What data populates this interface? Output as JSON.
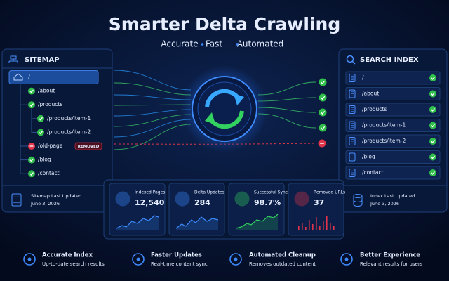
{
  "header": {
    "title": "Smarter Delta Crawling",
    "tagline": [
      "Accurate",
      "Fast",
      "Automated"
    ]
  },
  "sitemap": {
    "title": "SITEMAP",
    "items": [
      {
        "path": "/"
      },
      {
        "path": "/about"
      },
      {
        "path": "/products"
      },
      {
        "path": "/products/item-1"
      },
      {
        "path": "/products/item-2"
      },
      {
        "path": "/old-page",
        "badge": "REMOVED"
      },
      {
        "path": "/blog"
      },
      {
        "path": "/contact"
      }
    ],
    "footer": {
      "label": "Sitemap Last Updated",
      "date": "June 3, 2026"
    }
  },
  "search_index": {
    "title": "SEARCH INDEX",
    "items": [
      "/",
      "/about",
      "/products",
      "/products/item-1",
      "/products/item-2",
      "/blog",
      "/contact"
    ],
    "footer": {
      "label": "Index Last Updated",
      "date": "June 3, 2026"
    }
  },
  "stats": [
    {
      "label": "Indexed Pages",
      "value": "12,540"
    },
    {
      "label": "Delta Updates",
      "value": "284"
    },
    {
      "label": "Successful Sync",
      "value": "98.7%"
    },
    {
      "label": "Removed URLs",
      "value": "37"
    }
  ],
  "features": [
    {
      "title": "Accurate Index",
      "subtitle": "Up-to-date search results"
    },
    {
      "title": "Faster Updates",
      "subtitle": "Real-time content sync"
    },
    {
      "title": "Automated Cleanup",
      "subtitle": "Removes outdated content"
    },
    {
      "title": "Better Experience",
      "subtitle": "Relevant results for users"
    }
  ]
}
